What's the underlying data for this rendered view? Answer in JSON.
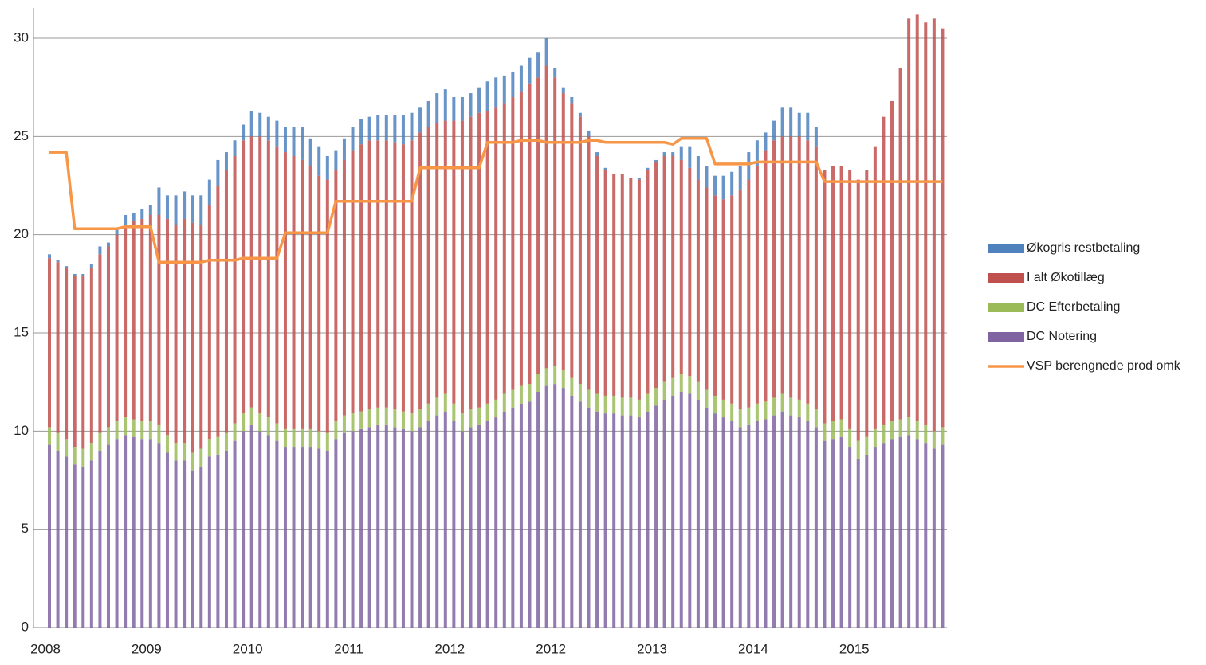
{
  "chart_data": {
    "type": "bar",
    "stacked": true,
    "categories": [
      "2008",
      null,
      null,
      null,
      null,
      null,
      null,
      null,
      null,
      null,
      null,
      null,
      "2009",
      null,
      null,
      null,
      null,
      null,
      null,
      null,
      null,
      null,
      null,
      null,
      "2010",
      null,
      null,
      null,
      null,
      null,
      null,
      null,
      null,
      null,
      null,
      null,
      "2011",
      null,
      null,
      null,
      null,
      null,
      null,
      null,
      null,
      null,
      null,
      null,
      "2012",
      null,
      null,
      null,
      null,
      null,
      null,
      null,
      null,
      null,
      null,
      null,
      "2012",
      null,
      null,
      null,
      null,
      null,
      null,
      null,
      null,
      null,
      null,
      null,
      "2013",
      null,
      null,
      null,
      null,
      null,
      null,
      null,
      null,
      null,
      null,
      null,
      "2014",
      null,
      null,
      null,
      null,
      null,
      null,
      null,
      null,
      null,
      null,
      null,
      "2015",
      null,
      null,
      null,
      null,
      null,
      null,
      null,
      null,
      null,
      null
    ],
    "series": [
      {
        "name": "Økogris restbetaling",
        "color": "#4f81bd",
        "values": [
          0.2,
          0.1,
          0.1,
          0.1,
          0.1,
          0.2,
          0.4,
          0.2,
          0.3,
          0.5,
          0.4,
          0.5,
          0.5,
          1.4,
          1.2,
          1.5,
          1.4,
          1.4,
          1.5,
          1.3,
          1.3,
          0.9,
          0.8,
          0.8,
          1.3,
          1.2,
          1.2,
          1.3,
          1.3,
          1.5,
          1.7,
          1.4,
          1.5,
          1.2,
          1.0,
          1.1,
          1.2,
          1.3,
          1.2,
          1.3,
          1.3,
          1.4,
          1.5,
          1.4,
          1.3,
          1.3,
          1.5,
          1.6,
          1.2,
          1.2,
          1.2,
          1.3,
          1.5,
          1.5,
          1.4,
          1.3,
          1.3,
          1.3,
          1.3,
          1.4,
          0.5,
          0.3,
          0.3,
          0.2,
          0.3,
          0.2,
          0.1,
          0,
          0,
          0,
          0.1,
          0.1,
          0.1,
          0.2,
          0.2,
          0.7,
          1.1,
          1.2,
          1.1,
          1.0,
          1.2,
          1.2,
          1.2,
          1.4,
          1.3,
          0.9,
          1.0,
          1.5,
          1.5,
          1.2,
          1.4,
          1.0,
          0,
          0,
          0,
          0,
          0,
          0,
          0,
          0,
          0,
          0,
          0,
          0,
          0,
          0,
          0
        ]
      },
      {
        "name": "I alt Økotillæg",
        "color": "#c0504d",
        "values": [
          8.6,
          8.7,
          8.7,
          8.7,
          8.8,
          8.9,
          9.1,
          9.2,
          9.5,
          9.8,
          10.1,
          10.3,
          10.5,
          10.7,
          11.0,
          11.1,
          11.4,
          11.7,
          11.4,
          11.9,
          12.8,
          13.4,
          13.6,
          13.9,
          13.8,
          14.1,
          14.1,
          14.1,
          14.1,
          13.9,
          13.7,
          13.4,
          13.0,
          12.9,
          12.8,
          13.0,
          13.4,
          13.6,
          13.7,
          13.6,
          13.6,
          13.6,
          13.6,
          13.9,
          14.1,
          14.1,
          14.0,
          13.9,
          14.4,
          14.9,
          14.9,
          15.0,
          14.9,
          14.9,
          14.8,
          14.9,
          15.0,
          15.3,
          15.1,
          15.4,
          14.7,
          14.1,
          14.0,
          13.6,
          12.9,
          12.1,
          11.5,
          11.3,
          11.4,
          11.2,
          11.2,
          11.4,
          11.5,
          11.5,
          11.3,
          10.9,
          10.6,
          10.3,
          10.3,
          10.2,
          10.2,
          10.6,
          11.2,
          11.6,
          12.1,
          12.8,
          13.1,
          13.1,
          13.3,
          13.4,
          13.4,
          13.4,
          12.9,
          13.0,
          12.9,
          13.2,
          13.3,
          13.6,
          14.4,
          15.7,
          16.3,
          17.9,
          20.3,
          20.7,
          20.5,
          21.0,
          20.3
        ]
      },
      {
        "name": "DC Efterbetaling",
        "color": "#9bbb59",
        "values": [
          0.9,
          0.9,
          0.9,
          0.9,
          0.9,
          0.9,
          0.9,
          0.9,
          0.9,
          0.9,
          0.9,
          0.9,
          0.9,
          0.9,
          0.9,
          0.9,
          0.9,
          0.9,
          0.9,
          0.9,
          0.9,
          0.9,
          0.9,
          0.9,
          0.9,
          0.9,
          0.9,
          0.9,
          0.9,
          0.9,
          0.9,
          0.9,
          0.9,
          0.9,
          0.9,
          0.9,
          0.9,
          0.9,
          0.9,
          0.9,
          0.9,
          0.9,
          0.9,
          0.9,
          0.9,
          0.9,
          0.9,
          0.9,
          0.9,
          0.9,
          0.9,
          0.9,
          0.9,
          0.9,
          0.9,
          0.9,
          0.9,
          0.9,
          0.9,
          0.9,
          0.9,
          0.9,
          0.9,
          0.9,
          0.9,
          0.9,
          0.9,
          0.9,
          0.9,
          0.9,
          0.9,
          0.9,
          0.9,
          0.9,
          0.9,
          0.9,
          0.9,
          0.9,
          0.9,
          0.9,
          0.9,
          0.9,
          0.9,
          0.9,
          0.9,
          0.9,
          0.9,
          0.9,
          0.9,
          0.9,
          0.9,
          0.9,
          0.9,
          0.9,
          0.9,
          0.9,
          0.9,
          0.9,
          0.9,
          0.9,
          0.9,
          0.9,
          0.9,
          0.9,
          0.9,
          0.9,
          0.9
        ]
      },
      {
        "name": "DC Notering",
        "color": "#8064a2",
        "values": [
          9.3,
          9.0,
          8.7,
          8.3,
          8.2,
          8.5,
          9.0,
          9.3,
          9.6,
          9.8,
          9.7,
          9.6,
          9.6,
          9.4,
          8.9,
          8.5,
          8.5,
          8.0,
          8.2,
          8.7,
          8.8,
          9.0,
          9.5,
          10.0,
          10.3,
          10.0,
          9.8,
          9.5,
          9.2,
          9.2,
          9.2,
          9.2,
          9.1,
          9.0,
          9.6,
          9.9,
          10.0,
          10.1,
          10.2,
          10.3,
          10.3,
          10.2,
          10.1,
          10.0,
          10.2,
          10.5,
          10.8,
          11.0,
          10.5,
          10.0,
          10.2,
          10.3,
          10.5,
          10.7,
          11.0,
          11.2,
          11.4,
          11.5,
          12.0,
          12.3,
          12.4,
          12.2,
          11.8,
          11.5,
          11.2,
          11.0,
          10.9,
          10.9,
          10.8,
          10.8,
          10.7,
          11.0,
          11.3,
          11.6,
          11.8,
          12.0,
          11.9,
          11.6,
          11.2,
          10.9,
          10.7,
          10.5,
          10.2,
          10.3,
          10.5,
          10.6,
          10.8,
          11.0,
          10.8,
          10.7,
          10.5,
          10.2,
          9.5,
          9.6,
          9.7,
          9.2,
          8.6,
          8.8,
          9.2,
          9.4,
          9.6,
          9.7,
          9.8,
          9.6,
          9.4,
          9.1,
          9.3
        ]
      },
      {
        "name": "VSP berengnede prod omk",
        "color": "#f79646",
        "type": "line",
        "values": [
          24.2,
          24.2,
          24.2,
          20.3,
          20.3,
          20.3,
          20.3,
          20.3,
          20.3,
          20.4,
          20.4,
          20.4,
          20.4,
          18.6,
          18.6,
          18.6,
          18.6,
          18.6,
          18.6,
          18.7,
          18.7,
          18.7,
          18.7,
          18.8,
          18.8,
          18.8,
          18.8,
          18.8,
          20.1,
          20.1,
          20.1,
          20.1,
          20.1,
          20.1,
          21.7,
          21.7,
          21.7,
          21.7,
          21.7,
          21.7,
          21.7,
          21.7,
          21.7,
          21.7,
          23.4,
          23.4,
          23.4,
          23.4,
          23.4,
          23.4,
          23.4,
          23.4,
          24.7,
          24.7,
          24.7,
          24.7,
          24.8,
          24.8,
          24.8,
          24.7,
          24.7,
          24.7,
          24.7,
          24.7,
          24.8,
          24.8,
          24.7,
          24.7,
          24.7,
          24.7,
          24.7,
          24.7,
          24.7,
          24.7,
          24.6,
          24.9,
          24.9,
          24.9,
          24.9,
          23.6,
          23.6,
          23.6,
          23.6,
          23.6,
          23.7,
          23.7,
          23.7,
          23.7,
          23.7,
          23.7,
          23.7,
          23.7,
          22.7,
          22.7,
          22.7,
          22.7,
          22.7,
          22.7,
          22.7,
          22.7,
          22.7,
          22.7,
          22.7,
          22.7,
          22.7,
          22.7,
          22.7
        ]
      }
    ],
    "ylim": [
      0,
      31.5
    ],
    "yticks": [
      0,
      5,
      10,
      15,
      20,
      25,
      30
    ],
    "grid": true,
    "legend": "right"
  }
}
